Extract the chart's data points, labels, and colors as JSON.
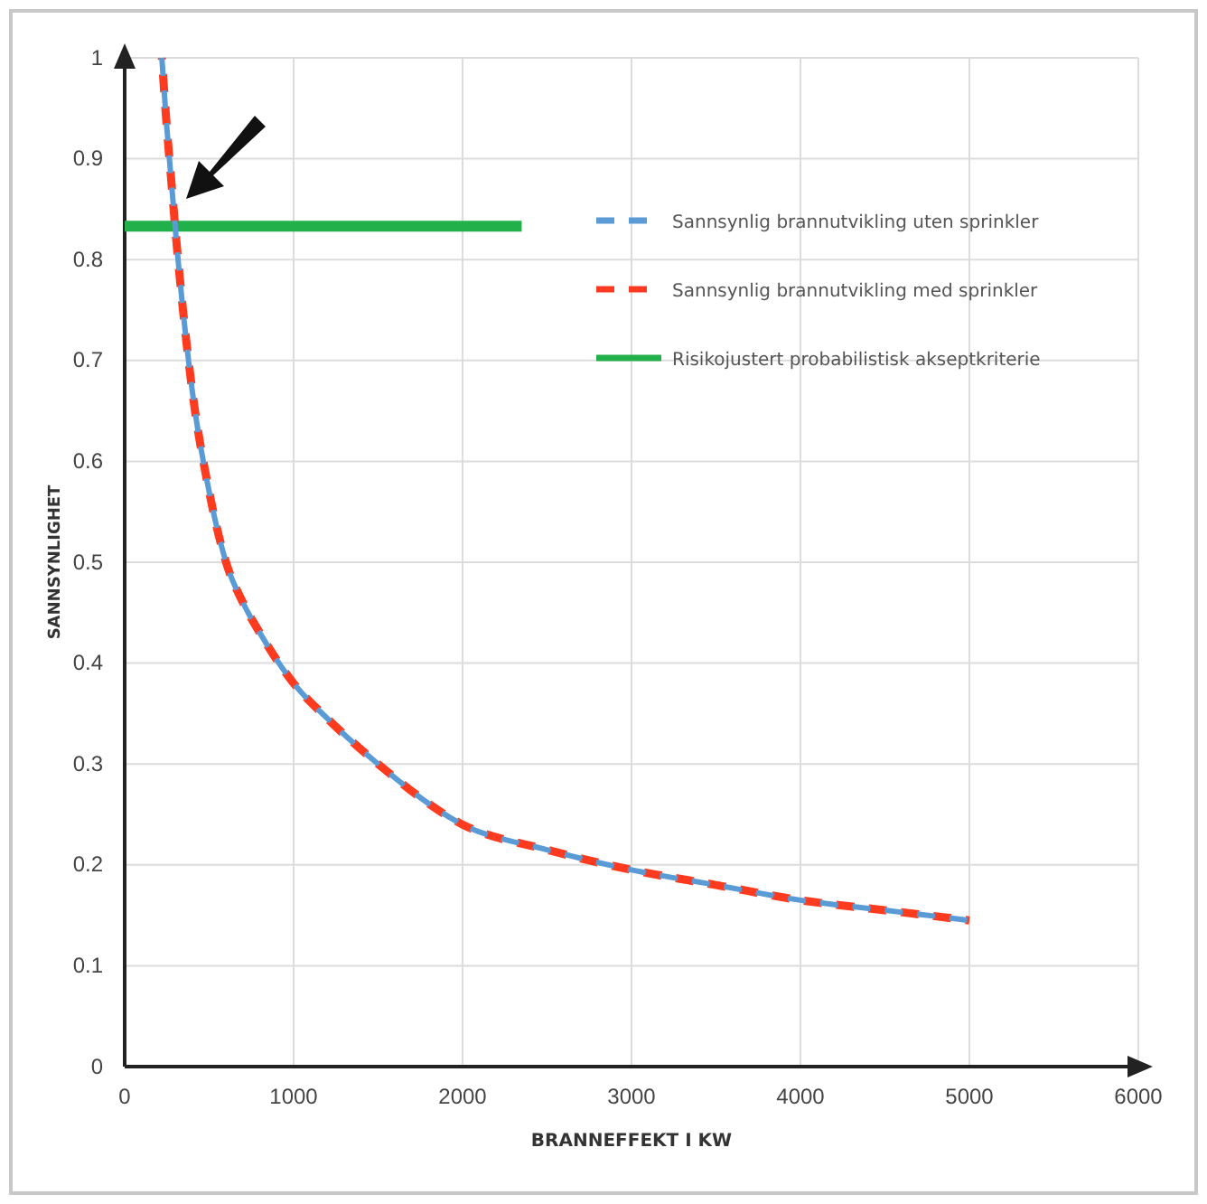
{
  "chart_data": {
    "type": "line",
    "xlabel": "BRANNEFFEKT I KW",
    "ylabel": "SANNSYNLIGHET",
    "xlim": [
      0,
      6000
    ],
    "xticks": [
      0,
      1000,
      2000,
      3000,
      4000,
      5000,
      6000
    ],
    "ylim": [
      0,
      1
    ],
    "yticks": [
      0,
      0.1,
      0.2,
      0.3,
      0.4,
      0.5,
      0.6,
      0.7,
      0.8,
      0.9,
      1
    ],
    "grid": true,
    "legend": "top right",
    "marker": "none",
    "series": [
      {
        "name": "Sannsynlig brannutvikling uten sprinkler",
        "color": "#5b9bd5",
        "line_style": "dashed",
        "x": [
          220,
          250,
          280,
          300,
          400,
          500,
          600,
          700,
          800,
          1000,
          1200,
          1500,
          2000,
          2500,
          3000,
          3500,
          4000,
          4500,
          5000
        ],
        "values": [
          1.0,
          0.93,
          0.87,
          0.83,
          0.67,
          0.57,
          0.5,
          0.46,
          0.43,
          0.38,
          0.345,
          0.3,
          0.24,
          0.215,
          0.195,
          0.18,
          0.165,
          0.155,
          0.145
        ]
      },
      {
        "name": "Sannsynlig brannutvikling med sprinkler",
        "color": "#ff3b1f",
        "line_style": "dashed",
        "x": [
          220,
          250,
          280,
          300,
          400,
          500,
          600,
          700,
          800,
          1000,
          1200,
          1500,
          2000,
          2500,
          3000,
          3500,
          4000,
          4500,
          5000
        ],
        "values": [
          1.0,
          0.93,
          0.87,
          0.83,
          0.67,
          0.57,
          0.5,
          0.46,
          0.43,
          0.38,
          0.345,
          0.3,
          0.24,
          0.215,
          0.195,
          0.18,
          0.165,
          0.155,
          0.145
        ]
      },
      {
        "name": "Risikojustert probabilistisk akseptkriterie",
        "color": "#22b04b",
        "line_style": "solid",
        "x": [
          0,
          2350
        ],
        "values": [
          0.833,
          0.833
        ]
      }
    ]
  }
}
